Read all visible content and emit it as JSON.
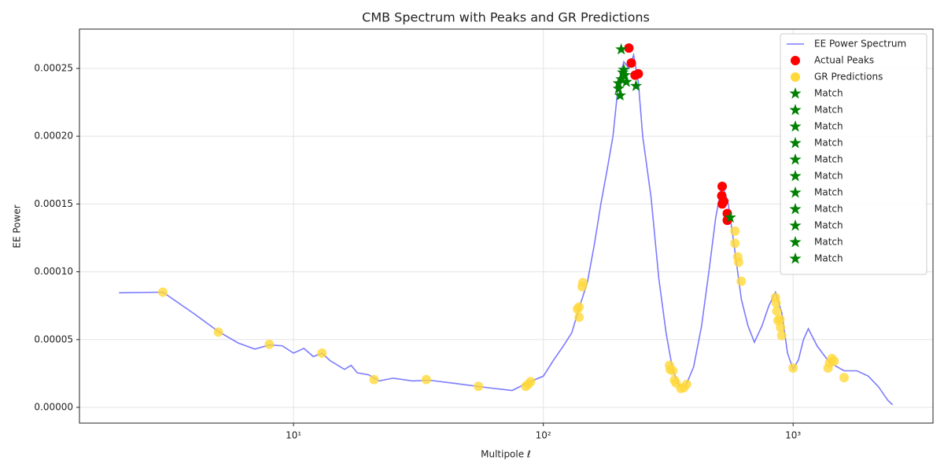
{
  "chart_data": {
    "type": "line",
    "title": "CMB Spectrum with Peaks and GR Predictions",
    "x_label": "Multipole ℓ",
    "y_label": "EE Power",
    "x_scale": "log",
    "grid": true,
    "legend": "upper right",
    "xlim": [
      1.39,
      3630
    ],
    "ylim": [
      -1.16e-05,
      0.000279
    ],
    "xticks": [
      {
        "value": 10,
        "label": "10¹"
      },
      {
        "value": 100,
        "label": "10²"
      },
      {
        "value": 1000,
        "label": "10³"
      }
    ],
    "yticks": [
      {
        "value": 0,
        "label": "0.00000"
      },
      {
        "value": 5e-05,
        "label": "0.00005"
      },
      {
        "value": 0.0001,
        "label": "0.00010"
      },
      {
        "value": 0.00015,
        "label": "0.00015"
      },
      {
        "value": 0.0002,
        "label": "0.00020"
      },
      {
        "value": 0.00025,
        "label": "0.00025"
      }
    ],
    "series": [
      {
        "name": "EE Power Spectrum",
        "marker": "line",
        "color": "#7b7bff",
        "x": [
          2,
          3,
          4,
          5,
          6,
          7,
          8,
          9,
          10,
          11,
          12,
          13,
          14,
          16,
          17,
          18,
          20,
          22,
          25,
          30,
          35,
          45,
          60,
          75,
          80,
          90,
          100,
          110,
          120,
          130,
          140,
          150,
          160,
          170,
          180,
          190,
          200,
          210,
          220,
          230,
          240,
          250,
          270,
          290,
          310,
          330,
          350,
          370,
          400,
          430,
          460,
          490,
          520,
          550,
          580,
          620,
          660,
          700,
          750,
          800,
          850,
          900,
          950,
          1000,
          1050,
          1100,
          1150,
          1250,
          1400,
          1600,
          1800,
          2000,
          2200,
          2400,
          2500
        ],
        "values": [
          8.45e-05,
          8.5e-05,
          6.9e-05,
          5.6e-05,
          4.75e-05,
          4.3e-05,
          4.6e-05,
          4.55e-05,
          4e-05,
          4.35e-05,
          3.75e-05,
          4e-05,
          3.45e-05,
          2.8e-05,
          3.1e-05,
          2.55e-05,
          2.4e-05,
          1.95e-05,
          2.15e-05,
          1.95e-05,
          2e-05,
          1.75e-05,
          1.45e-05,
          1.25e-05,
          1.5e-05,
          1.95e-05,
          2.3e-05,
          3.5e-05,
          4.5e-05,
          5.5e-05,
          7.5e-05,
          9.2e-05,
          0.00012,
          0.00015,
          0.000175,
          0.0002,
          0.00024,
          0.000255,
          0.00025,
          0.00026,
          0.00024,
          0.0002,
          0.000155,
          9.5e-05,
          5.5e-05,
          2.7e-05,
          1.6e-05,
          1.5e-05,
          3e-05,
          6e-05,
          0.0001,
          0.00014,
          0.000165,
          0.00015,
          0.00012,
          8e-05,
          6e-05,
          4.8e-05,
          6e-05,
          7.5e-05,
          8.5e-05,
          7e-05,
          4e-05,
          2.8e-05,
          3.5e-05,
          5e-05,
          5.8e-05,
          4.5e-05,
          3.3e-05,
          2.7e-05,
          2.7e-05,
          2.3e-05,
          1.5e-05,
          5e-06,
          2e-06
        ]
      },
      {
        "name": "Actual Peaks",
        "marker": "circle",
        "color": "#ff0000",
        "x": [
          220,
          225,
          233,
          240,
          520,
          518,
          520,
          528,
          545,
          545
        ],
        "values": [
          0.000265,
          0.000254,
          0.000245,
          0.000246,
          0.000163,
          0.000156,
          0.00015,
          0.000152,
          0.000143,
          0.000138
        ]
      },
      {
        "name": "GR Predictions",
        "marker": "circle",
        "color": "#ffd83a",
        "x": [
          3,
          5,
          8,
          13,
          21,
          34,
          55,
          85,
          87,
          89,
          137,
          139,
          139,
          143,
          144,
          320,
          322,
          330,
          335,
          340,
          355,
          365,
          375,
          585,
          585,
          600,
          605,
          620,
          850,
          855,
          860,
          870,
          885,
          890,
          900,
          1000,
          1380,
          1400,
          1430,
          1460,
          1600
        ],
        "values": [
          8.5e-05,
          5.55e-05,
          4.65e-05,
          4e-05,
          2.05e-05,
          2.05e-05,
          1.55e-05,
          1.55e-05,
          1.7e-05,
          1.9e-05,
          7.25e-05,
          7.4e-05,
          6.65e-05,
          8.9e-05,
          9.2e-05,
          3.1e-05,
          2.8e-05,
          2.7e-05,
          2e-05,
          1.8e-05,
          1.4e-05,
          1.45e-05,
          1.7e-05,
          0.00013,
          0.000121,
          0.000111,
          0.000107,
          9.3e-05,
          8.1e-05,
          7.7e-05,
          7.1e-05,
          6.4e-05,
          6.5e-05,
          5.9e-05,
          5.3e-05,
          2.9e-05,
          2.9e-05,
          3.3e-05,
          3.6e-05,
          3.4e-05,
          2.2e-05
        ]
      },
      {
        "name": "Match",
        "marker": "star",
        "color": "#008000",
        "x": [
          205
        ],
        "values": [
          0.000264
        ]
      },
      {
        "name": "Match",
        "marker": "star",
        "color": "#008000",
        "x": [
          210
        ],
        "values": [
          0.000249
        ]
      },
      {
        "name": "Match",
        "marker": "star",
        "color": "#008000",
        "x": [
          205
        ],
        "values": [
          0.000242
        ]
      },
      {
        "name": "Match",
        "marker": "star",
        "color": "#008000",
        "x": [
          200
        ],
        "values": [
          0.000239
        ]
      },
      {
        "name": "Match",
        "marker": "star",
        "color": "#008000",
        "x": [
          212
        ],
        "values": [
          0.000245
        ]
      },
      {
        "name": "Match",
        "marker": "star",
        "color": "#008000",
        "x": [
          200
        ],
        "values": [
          0.000235
        ]
      },
      {
        "name": "Match",
        "marker": "star",
        "color": "#008000",
        "x": [
          203
        ],
        "values": [
          0.00023
        ]
      },
      {
        "name": "Match",
        "marker": "star",
        "color": "#008000",
        "x": [
          215
        ],
        "values": [
          0.00024
        ]
      },
      {
        "name": "Match",
        "marker": "star",
        "color": "#008000",
        "x": [
          235
        ],
        "values": [
          0.000237
        ]
      },
      {
        "name": "Match",
        "marker": "star",
        "color": "#008000",
        "x": [
          560
        ],
        "values": [
          0.00014
        ]
      },
      {
        "name": "Match",
        "marker": "star",
        "color": "#008000",
        "x": [
          208
        ],
        "values": [
          0.000247
        ]
      }
    ]
  }
}
